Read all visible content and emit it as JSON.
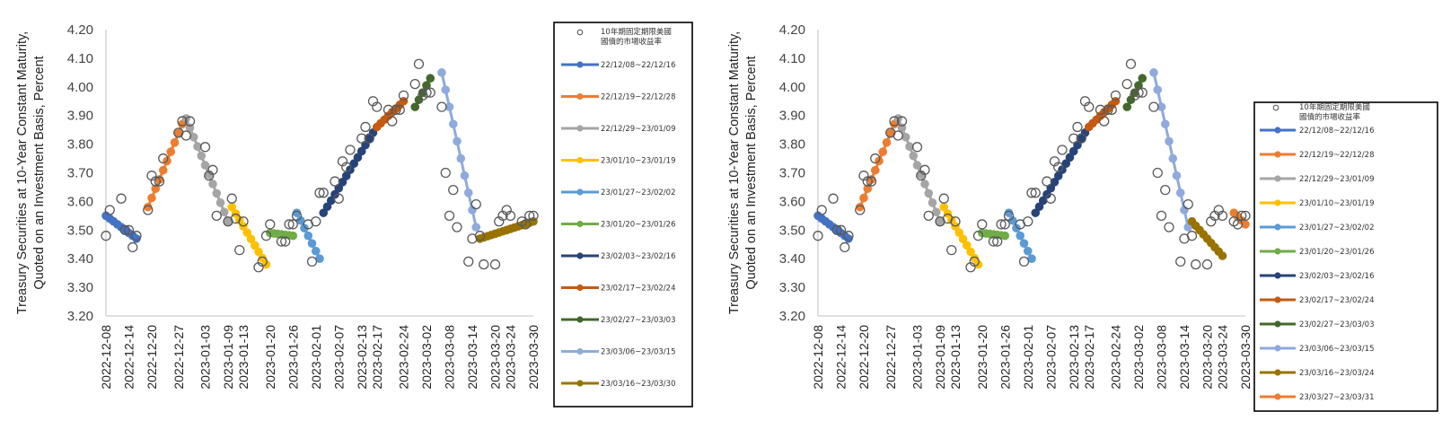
{
  "chart_data": [
    {
      "type": "scatter+line",
      "ylabel": "Treasury Securities at 10-Year Constant Maturity, Quoted on an Investment Basis, Percent",
      "ylim": [
        3.2,
        4.2
      ],
      "yticks": [
        "3.20",
        "3.30",
        "3.40",
        "3.50",
        "3.60",
        "3.70",
        "3.80",
        "3.90",
        "4.00",
        "4.10",
        "4.20"
      ],
      "xlim": [
        "2022-12-08",
        "2023-03-30"
      ],
      "xticks": [
        "2022-12-08",
        "2022-12-14",
        "2022-12-20",
        "2022-12-27",
        "2023-01-03",
        "2023-01-09",
        "2023-01-13",
        "2023-01-20",
        "2023-01-26",
        "2023-02-01",
        "2023-02-07",
        "2023-02-13",
        "2023-02-17",
        "2023-02-24",
        "2023-03-02",
        "2023-03-08",
        "2023-03-14",
        "2023-03-20",
        "2023-03-24",
        "2023-03-30"
      ],
      "legend_position": "right",
      "scatter": {
        "name": "10年期固定期限美國國債的市場收益率",
        "points": [
          [
            "2022-12-08",
            3.48
          ],
          [
            "2022-12-09",
            3.57
          ],
          [
            "2022-12-12",
            3.61
          ],
          [
            "2022-12-13",
            3.5
          ],
          [
            "2022-12-14",
            3.5
          ],
          [
            "2022-12-15",
            3.44
          ],
          [
            "2022-12-16",
            3.48
          ],
          [
            "2022-12-19",
            3.57
          ],
          [
            "2022-12-20",
            3.69
          ],
          [
            "2022-12-21",
            3.67
          ],
          [
            "2022-12-22",
            3.67
          ],
          [
            "2022-12-23",
            3.75
          ],
          [
            "2022-12-27",
            3.84
          ],
          [
            "2022-12-28",
            3.88
          ],
          [
            "2022-12-29",
            3.83
          ],
          [
            "2022-12-30",
            3.88
          ],
          [
            "2023-01-03",
            3.79
          ],
          [
            "2023-01-04",
            3.69
          ],
          [
            "2023-01-05",
            3.71
          ],
          [
            "2023-01-06",
            3.55
          ],
          [
            "2023-01-09",
            3.53
          ],
          [
            "2023-01-10",
            3.61
          ],
          [
            "2023-01-11",
            3.54
          ],
          [
            "2023-01-12",
            3.43
          ],
          [
            "2023-01-13",
            3.53
          ],
          [
            "2023-01-17",
            3.37
          ],
          [
            "2023-01-18",
            3.39
          ],
          [
            "2023-01-19",
            3.48
          ],
          [
            "2023-01-20",
            3.52
          ],
          [
            "2023-01-23",
            3.46
          ],
          [
            "2023-01-24",
            3.46
          ],
          [
            "2023-01-25",
            3.52
          ],
          [
            "2023-01-26",
            3.52
          ],
          [
            "2023-01-27",
            3.55
          ],
          [
            "2023-01-30",
            3.52
          ],
          [
            "2023-01-31",
            3.39
          ],
          [
            "2023-02-01",
            3.53
          ],
          [
            "2023-02-02",
            3.63
          ],
          [
            "2023-02-03",
            3.63
          ],
          [
            "2023-02-06",
            3.67
          ],
          [
            "2023-02-07",
            3.61
          ],
          [
            "2023-02-08",
            3.74
          ],
          [
            "2023-02-09",
            3.72
          ],
          [
            "2023-02-10",
            3.78
          ],
          [
            "2023-02-13",
            3.82
          ],
          [
            "2023-02-14",
            3.86
          ],
          [
            "2023-02-15",
            3.82
          ],
          [
            "2023-02-16",
            3.95
          ],
          [
            "2023-02-17",
            3.93
          ],
          [
            "2023-02-20",
            3.92
          ],
          [
            "2023-02-21",
            3.88
          ],
          [
            "2023-02-22",
            3.92
          ],
          [
            "2023-02-23",
            3.92
          ],
          [
            "2023-02-24",
            3.97
          ],
          [
            "2023-02-27",
            4.01
          ],
          [
            "2023-02-28",
            4.08
          ],
          [
            "2023-03-01",
            3.97
          ],
          [
            "2023-03-02",
            3.98
          ],
          [
            "2023-03-03",
            3.98
          ],
          [
            "2023-03-06",
            3.93
          ],
          [
            "2023-03-07",
            3.7
          ],
          [
            "2023-03-08",
            3.55
          ],
          [
            "2023-03-09",
            3.64
          ],
          [
            "2023-03-10",
            3.51
          ],
          [
            "2023-03-13",
            3.39
          ],
          [
            "2023-03-14",
            3.47
          ],
          [
            "2023-03-15",
            3.59
          ],
          [
            "2023-03-16",
            3.48
          ],
          [
            "2023-03-17",
            3.38
          ],
          [
            "2023-03-20",
            3.38
          ],
          [
            "2023-03-21",
            3.53
          ],
          [
            "2023-03-22",
            3.55
          ],
          [
            "2023-03-23",
            3.57
          ],
          [
            "2023-03-24",
            3.55
          ],
          [
            "2023-03-27",
            3.53
          ],
          [
            "2023-03-28",
            3.52
          ],
          [
            "2023-03-29",
            3.55
          ],
          [
            "2023-03-30",
            3.55
          ]
        ]
      },
      "series": [
        {
          "name": "22/12/08~22/12/16",
          "color": "#4472c4",
          "start": [
            "2022-12-08",
            3.55
          ],
          "end": [
            "2022-12-16",
            3.47
          ]
        },
        {
          "name": "22/12/19~22/12/28",
          "color": "#ed7d31",
          "start": [
            "2022-12-19",
            3.58
          ],
          "end": [
            "2022-12-28",
            3.87
          ]
        },
        {
          "name": "22/12/29~23/01/09",
          "color": "#a5a5a5",
          "start": [
            "2022-12-29",
            3.89
          ],
          "end": [
            "2023-01-09",
            3.53
          ]
        },
        {
          "name": "23/01/10~23/01/19",
          "color": "#ffc000",
          "start": [
            "2023-01-10",
            3.58
          ],
          "end": [
            "2023-01-19",
            3.38
          ]
        },
        {
          "name": "23/01/27~23/02/02",
          "color": "#5b9bd5",
          "start": [
            "2023-01-27",
            3.56
          ],
          "end": [
            "2023-02-02",
            3.4
          ]
        },
        {
          "name": "23/01/20~23/01/26",
          "color": "#70ad47",
          "start": [
            "2023-01-20",
            3.49
          ],
          "end": [
            "2023-01-26",
            3.48
          ]
        },
        {
          "name": "23/02/03~23/02/16",
          "color": "#264478",
          "start": [
            "2023-02-03",
            3.56
          ],
          "end": [
            "2023-02-16",
            3.84
          ]
        },
        {
          "name": "23/02/17~23/02/24",
          "color": "#c55a11",
          "start": [
            "2023-02-17",
            3.86
          ],
          "end": [
            "2023-02-24",
            3.95
          ]
        },
        {
          "name": "23/02/27~23/03/03",
          "color": "#43682b",
          "start": [
            "2023-02-27",
            3.93
          ],
          "end": [
            "2023-03-03",
            4.03
          ]
        },
        {
          "name": "23/03/06~23/03/15",
          "color": "#8faadc",
          "start": [
            "2023-03-06",
            4.05
          ],
          "end": [
            "2023-03-15",
            3.51
          ]
        },
        {
          "name": "23/03/16~23/03/30",
          "color": "#997300",
          "start": [
            "2023-03-16",
            3.47
          ],
          "end": [
            "2023-03-30",
            3.53
          ]
        }
      ]
    },
    {
      "type": "scatter+line",
      "ylabel": "Treasury Securities at 10-Year Constant Maturity, Quoted on an Investment Basis, Percent",
      "ylim": [
        3.2,
        4.2
      ],
      "yticks": [
        "3.20",
        "3.30",
        "3.40",
        "3.50",
        "3.60",
        "3.70",
        "3.80",
        "3.90",
        "4.00",
        "4.10",
        "4.20"
      ],
      "xlim": [
        "2022-12-08",
        "2023-03-30"
      ],
      "xticks": [
        "2022-12-08",
        "2022-12-14",
        "2022-12-20",
        "2022-12-27",
        "2023-01-03",
        "2023-01-09",
        "2023-01-13",
        "2023-01-20",
        "2023-01-26",
        "2023-02-01",
        "2023-02-07",
        "2023-02-13",
        "2023-02-17",
        "2023-02-24",
        "2023-03-02",
        "2023-03-08",
        "2023-03-14",
        "2023-03-20",
        "2023-03-24",
        "2023-03-30"
      ],
      "legend_position": "right",
      "scatter": {
        "name": "10年期固定期限美國國債的市場收益率",
        "points": [
          [
            "2022-12-08",
            3.48
          ],
          [
            "2022-12-09",
            3.57
          ],
          [
            "2022-12-12",
            3.61
          ],
          [
            "2022-12-13",
            3.5
          ],
          [
            "2022-12-14",
            3.5
          ],
          [
            "2022-12-15",
            3.44
          ],
          [
            "2022-12-16",
            3.48
          ],
          [
            "2022-12-19",
            3.57
          ],
          [
            "2022-12-20",
            3.69
          ],
          [
            "2022-12-21",
            3.67
          ],
          [
            "2022-12-22",
            3.67
          ],
          [
            "2022-12-23",
            3.75
          ],
          [
            "2022-12-27",
            3.84
          ],
          [
            "2022-12-28",
            3.88
          ],
          [
            "2022-12-29",
            3.83
          ],
          [
            "2022-12-30",
            3.88
          ],
          [
            "2023-01-03",
            3.79
          ],
          [
            "2023-01-04",
            3.69
          ],
          [
            "2023-01-05",
            3.71
          ],
          [
            "2023-01-06",
            3.55
          ],
          [
            "2023-01-09",
            3.53
          ],
          [
            "2023-01-10",
            3.61
          ],
          [
            "2023-01-11",
            3.54
          ],
          [
            "2023-01-12",
            3.43
          ],
          [
            "2023-01-13",
            3.53
          ],
          [
            "2023-01-17",
            3.37
          ],
          [
            "2023-01-18",
            3.39
          ],
          [
            "2023-01-19",
            3.48
          ],
          [
            "2023-01-20",
            3.52
          ],
          [
            "2023-01-23",
            3.46
          ],
          [
            "2023-01-24",
            3.46
          ],
          [
            "2023-01-25",
            3.52
          ],
          [
            "2023-01-26",
            3.52
          ],
          [
            "2023-01-27",
            3.55
          ],
          [
            "2023-01-30",
            3.52
          ],
          [
            "2023-01-31",
            3.39
          ],
          [
            "2023-02-01",
            3.53
          ],
          [
            "2023-02-02",
            3.63
          ],
          [
            "2023-02-03",
            3.63
          ],
          [
            "2023-02-06",
            3.67
          ],
          [
            "2023-02-07",
            3.61
          ],
          [
            "2023-02-08",
            3.74
          ],
          [
            "2023-02-09",
            3.72
          ],
          [
            "2023-02-10",
            3.78
          ],
          [
            "2023-02-13",
            3.82
          ],
          [
            "2023-02-14",
            3.86
          ],
          [
            "2023-02-15",
            3.82
          ],
          [
            "2023-02-16",
            3.95
          ],
          [
            "2023-02-17",
            3.93
          ],
          [
            "2023-02-20",
            3.92
          ],
          [
            "2023-02-21",
            3.88
          ],
          [
            "2023-02-22",
            3.92
          ],
          [
            "2023-02-23",
            3.92
          ],
          [
            "2023-02-24",
            3.97
          ],
          [
            "2023-02-27",
            4.01
          ],
          [
            "2023-02-28",
            4.08
          ],
          [
            "2023-03-01",
            3.97
          ],
          [
            "2023-03-02",
            3.98
          ],
          [
            "2023-03-03",
            3.98
          ],
          [
            "2023-03-06",
            3.93
          ],
          [
            "2023-03-07",
            3.7
          ],
          [
            "2023-03-08",
            3.55
          ],
          [
            "2023-03-09",
            3.64
          ],
          [
            "2023-03-10",
            3.51
          ],
          [
            "2023-03-13",
            3.39
          ],
          [
            "2023-03-14",
            3.47
          ],
          [
            "2023-03-15",
            3.59
          ],
          [
            "2023-03-16",
            3.48
          ],
          [
            "2023-03-17",
            3.38
          ],
          [
            "2023-03-20",
            3.38
          ],
          [
            "2023-03-21",
            3.53
          ],
          [
            "2023-03-22",
            3.55
          ],
          [
            "2023-03-23",
            3.57
          ],
          [
            "2023-03-24",
            3.55
          ],
          [
            "2023-03-27",
            3.53
          ],
          [
            "2023-03-28",
            3.52
          ],
          [
            "2023-03-29",
            3.55
          ],
          [
            "2023-03-30",
            3.55
          ]
        ]
      },
      "series": [
        {
          "name": "22/12/08~22/12/16",
          "color": "#4472c4",
          "start": [
            "2022-12-08",
            3.55
          ],
          "end": [
            "2022-12-16",
            3.47
          ]
        },
        {
          "name": "22/12/19~22/12/28",
          "color": "#ed7d31",
          "start": [
            "2022-12-19",
            3.58
          ],
          "end": [
            "2022-12-28",
            3.87
          ]
        },
        {
          "name": "22/12/29~23/01/09",
          "color": "#a5a5a5",
          "start": [
            "2022-12-29",
            3.89
          ],
          "end": [
            "2023-01-09",
            3.53
          ]
        },
        {
          "name": "23/01/10~23/01/19",
          "color": "#ffc000",
          "start": [
            "2023-01-10",
            3.58
          ],
          "end": [
            "2023-01-19",
            3.38
          ]
        },
        {
          "name": "23/01/27~23/02/02",
          "color": "#5b9bd5",
          "start": [
            "2023-01-27",
            3.56
          ],
          "end": [
            "2023-02-02",
            3.4
          ]
        },
        {
          "name": "23/01/20~23/01/26",
          "color": "#70ad47",
          "start": [
            "2023-01-20",
            3.49
          ],
          "end": [
            "2023-01-26",
            3.48
          ]
        },
        {
          "name": "23/02/03~23/02/16",
          "color": "#264478",
          "start": [
            "2023-02-03",
            3.56
          ],
          "end": [
            "2023-02-16",
            3.84
          ]
        },
        {
          "name": "23/02/17~23/02/24",
          "color": "#c55a11",
          "start": [
            "2023-02-17",
            3.86
          ],
          "end": [
            "2023-02-24",
            3.95
          ]
        },
        {
          "name": "23/02/27~23/03/03",
          "color": "#43682b",
          "start": [
            "2023-02-27",
            3.93
          ],
          "end": [
            "2023-03-03",
            4.03
          ]
        },
        {
          "name": "23/03/06~23/03/15",
          "color": "#8faadc",
          "start": [
            "2023-03-06",
            4.05
          ],
          "end": [
            "2023-03-15",
            3.51
          ]
        },
        {
          "name": "23/03/16~23/03/24",
          "color": "#997300",
          "start": [
            "2023-03-16",
            3.53
          ],
          "end": [
            "2023-03-24",
            3.41
          ]
        },
        {
          "name": "23/03/27~23/03/31",
          "color": "#ed7d31",
          "start": [
            "2023-03-27",
            3.56
          ],
          "end": [
            "2023-03-30",
            3.52
          ]
        }
      ]
    }
  ]
}
